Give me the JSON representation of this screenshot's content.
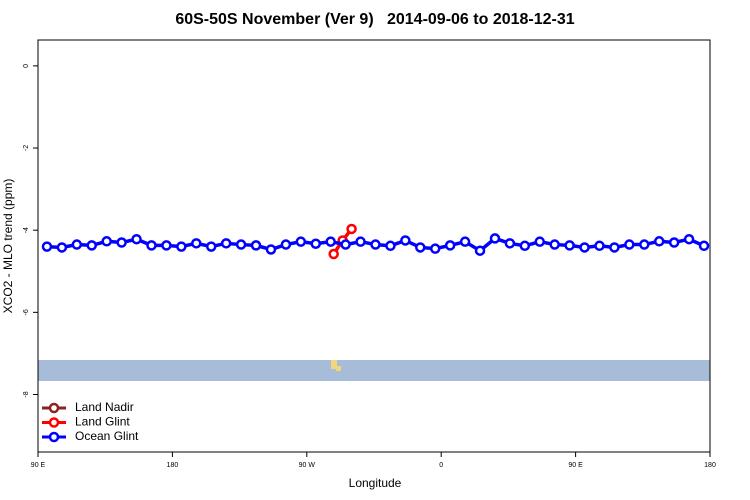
{
  "chart_data": {
    "type": "line",
    "title": "60S-50S November (Ver 9)   2014-09-06 to 2018-12-31",
    "x_label": "Longitude",
    "y_label": "XCO2 - MLO trend (ppm)",
    "xlim": [
      90,
      540
    ],
    "ylim": [
      -9.4,
      0.63
    ],
    "xticks": [
      {
        "value": 90,
        "label": "90 E"
      },
      180,
      {
        "value": 270,
        "label": "90 W"
      },
      {
        "value": 360,
        "label": "0"
      },
      {
        "value": 450,
        "label": "90 E"
      },
      {
        "value": 540,
        "label": "180"
      }
    ],
    "yticks": [
      0,
      -2,
      -4,
      -6,
      -8
    ],
    "legend": "bottom-left",
    "series": [
      {
        "name": "Land Nadir",
        "color": "#8b2323",
        "x": [],
        "values": []
      },
      {
        "name": "Land Glint",
        "color": "#ff0000",
        "x": [
          288,
          294,
          300
        ],
        "values": [
          -4.58,
          -4.25,
          -3.97
        ]
      },
      {
        "name": "Ocean Glint",
        "color": "#0000ff",
        "x": [
          96,
          106,
          116,
          126,
          136,
          146,
          156,
          166,
          176,
          186,
          196,
          206,
          216,
          226,
          236,
          246,
          256,
          266,
          276,
          286,
          296,
          306,
          316,
          326,
          336,
          346,
          356,
          366,
          376,
          386,
          396,
          406,
          416,
          426,
          436,
          446,
          456,
          466,
          476,
          486,
          496,
          506,
          516,
          526,
          536
        ],
        "values": [
          -4.4,
          -4.42,
          -4.35,
          -4.37,
          -4.27,
          -4.3,
          -4.22,
          -4.37,
          -4.37,
          -4.4,
          -4.32,
          -4.4,
          -4.32,
          -4.35,
          -4.37,
          -4.47,
          -4.35,
          -4.28,
          -4.33,
          -4.28,
          -4.35,
          -4.28,
          -4.35,
          -4.38,
          -4.25,
          -4.42,
          -4.45,
          -4.37,
          -4.28,
          -4.5,
          -4.2,
          -4.32,
          -4.38,
          -4.28,
          -4.35,
          -4.37,
          -4.42,
          -4.38,
          -4.42,
          -4.35,
          -4.35,
          -4.27,
          -4.3,
          -4.22,
          -4.38
        ]
      }
    ]
  }
}
